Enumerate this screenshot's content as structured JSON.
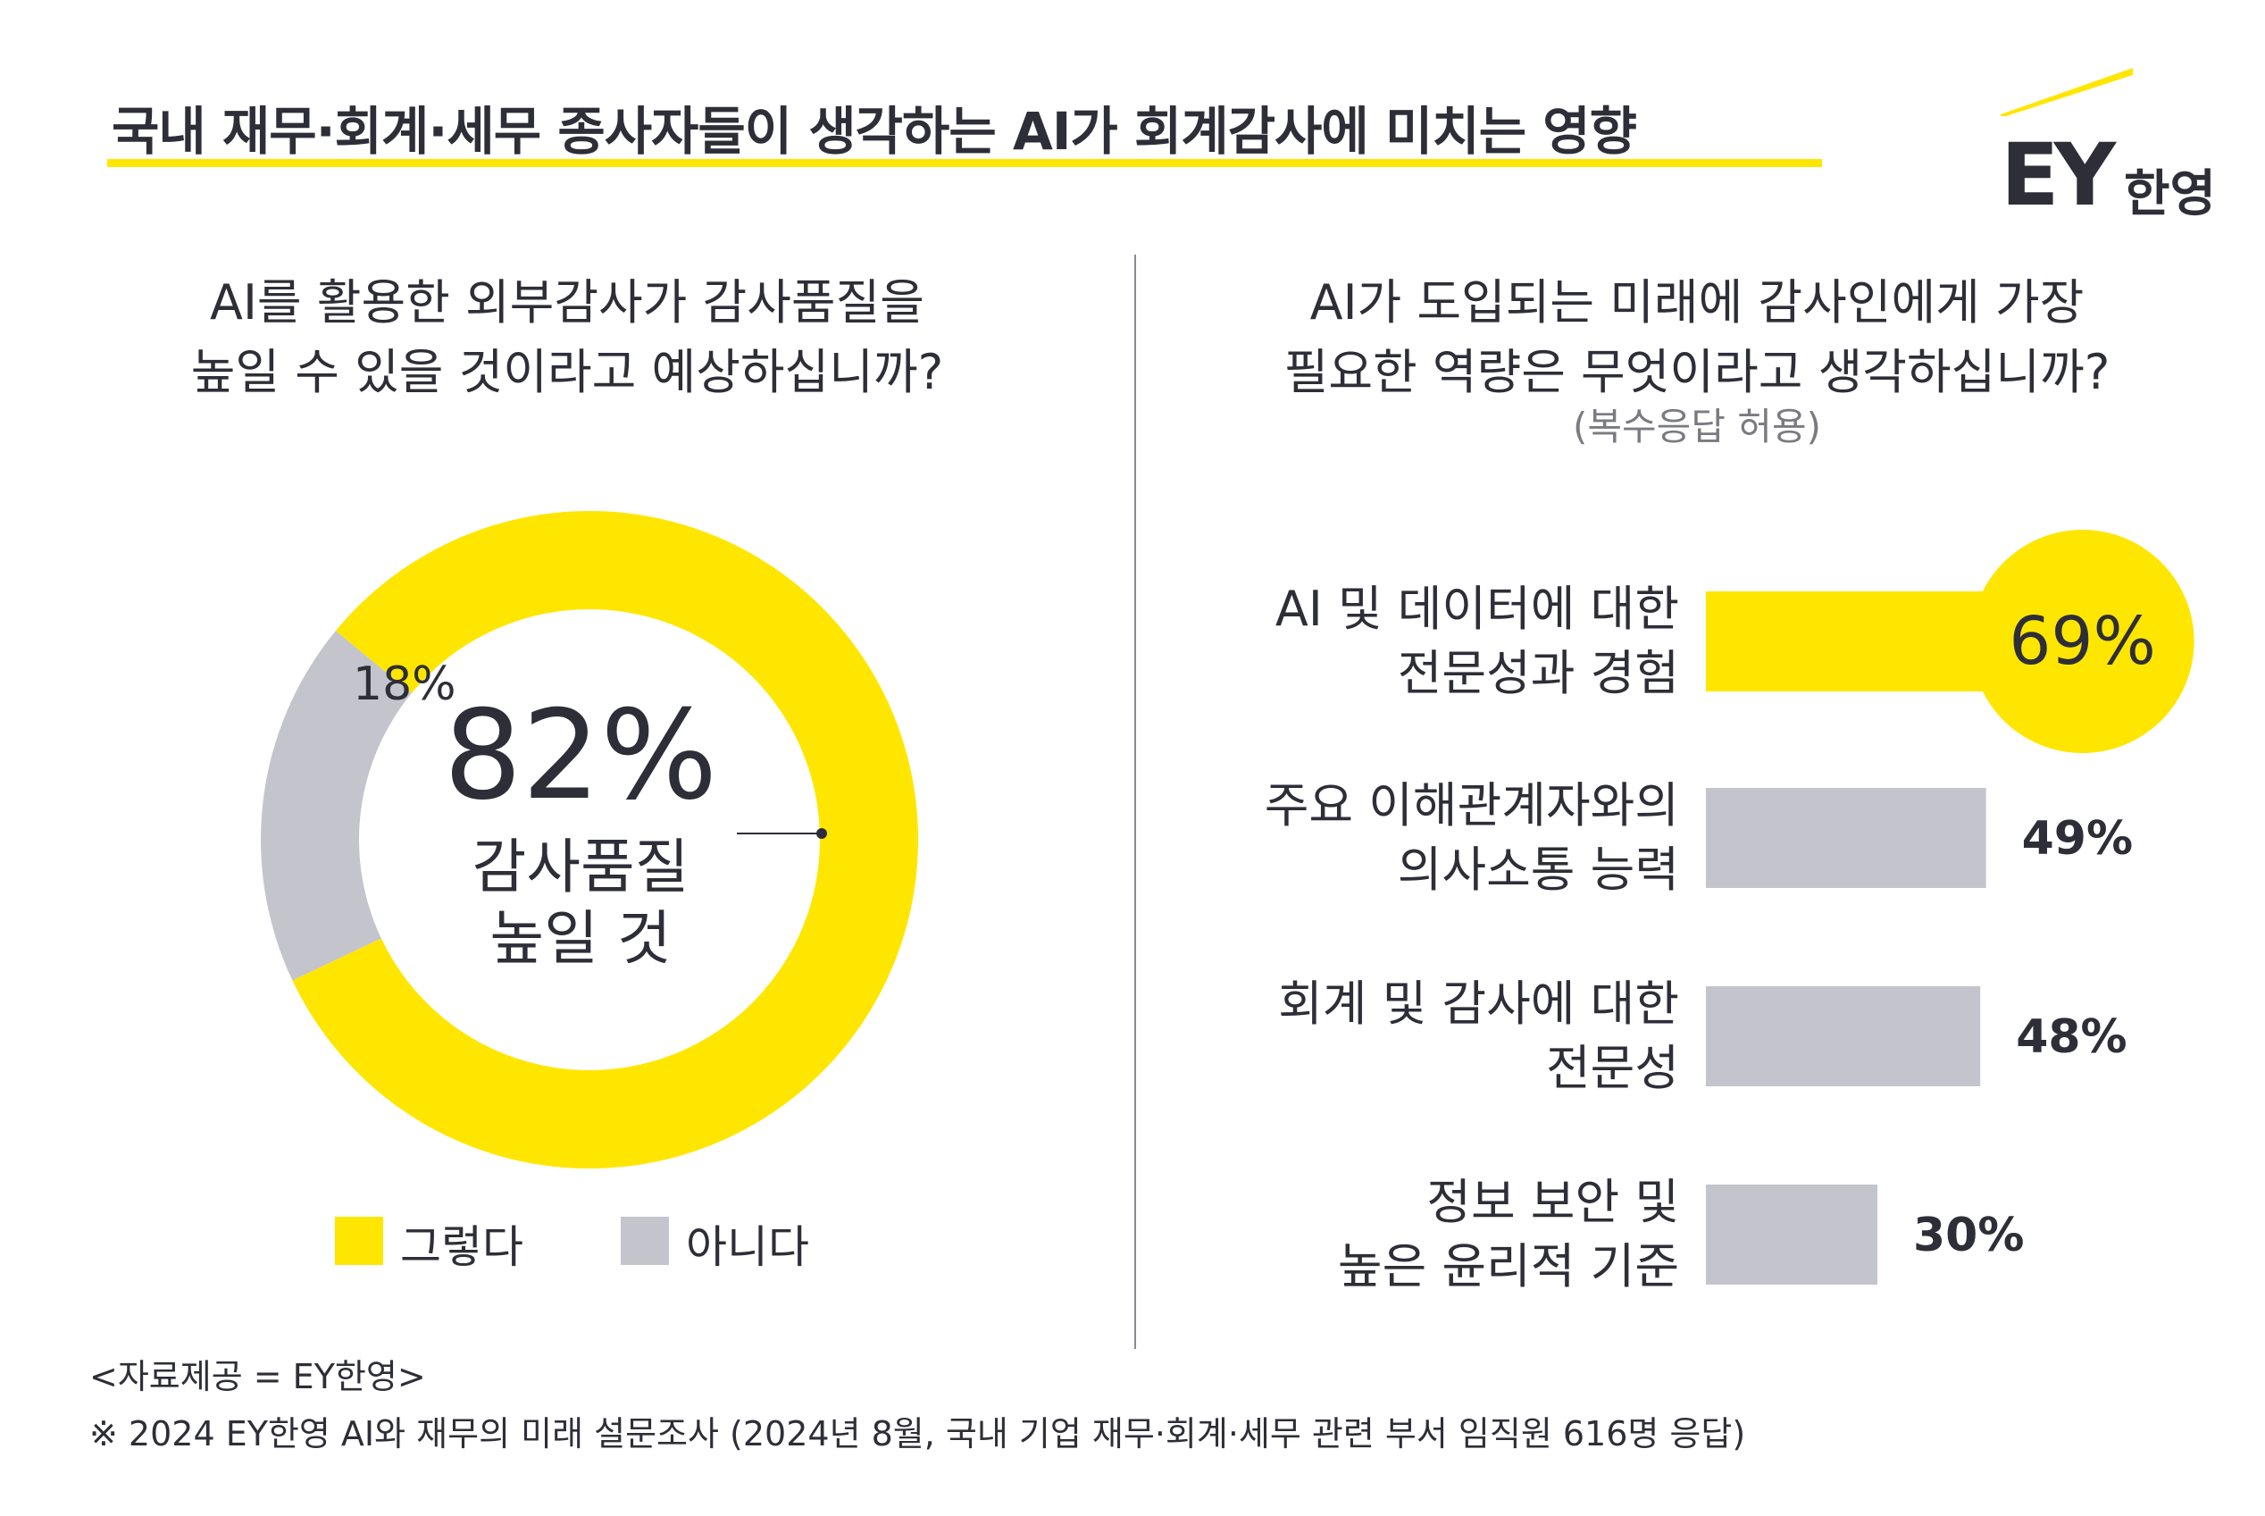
{
  "header": {
    "title": "국내 재무·회계·세무 종사자들이 생각하는 AI가 회계감사에 미치는 영향",
    "logo_text": "EY",
    "logo_sub": "한영"
  },
  "colors": {
    "accent": "#ffe600",
    "gray": "#c4c4cd",
    "text": "#2e2e38"
  },
  "chart_data": [
    {
      "type": "pie",
      "title_lines": [
        "AI를 활용한 외부감사가 감사품질을",
        "높일 수 있을 것이라고 예상하십니까?"
      ],
      "slices": [
        {
          "name": "그렇다",
          "value": 82,
          "label": "82%",
          "color": "#ffe600"
        },
        {
          "name": "아니다",
          "value": 18,
          "label": "18%",
          "color": "#c4c4cd"
        }
      ],
      "center_value": "82%",
      "center_caption_lines": [
        "감사품질",
        "높일 것"
      ],
      "legend": [
        "그렇다",
        "아니다"
      ],
      "legend_placement": "bottom"
    },
    {
      "type": "bar",
      "orientation": "horizontal",
      "title_lines": [
        "AI가 도입되는 미래에 감사인에게 가장",
        "필요한 역량은 무엇이라고 생각하십니까?"
      ],
      "note": "(복수응답 허용)",
      "categories": [
        [
          "AI 및 데이터에 대한",
          "전문성과 경험"
        ],
        [
          "주요 이해관계자와의",
          "의사소통 능력"
        ],
        [
          "회계 및 감사에 대한",
          "전문성"
        ],
        [
          "정보 보안 및",
          "높은 윤리적 기준"
        ]
      ],
      "values": [
        69,
        49,
        48,
        30
      ],
      "value_labels": [
        "69%",
        "49%",
        "48%",
        "30%"
      ],
      "highlight_index": 0
    }
  ],
  "footer": {
    "source": "<자료제공 = EY한영>",
    "note": "※ 2024 EY한영 AI와 재무의 미래 설문조사 (2024년 8월, 국내 기업 재무·회계·세무 관련 부서 임직원 616명 응답)"
  }
}
